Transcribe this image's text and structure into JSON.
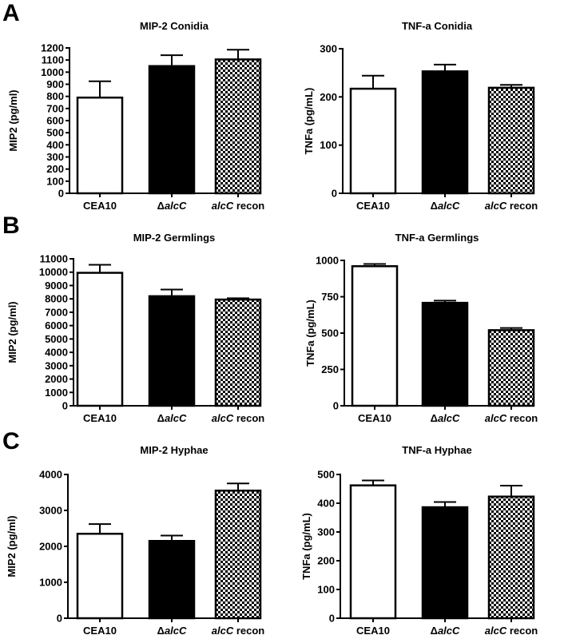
{
  "panel_labels": [
    "A",
    "B",
    "C"
  ],
  "colors": {
    "CEA10": "#ffffff",
    "ΔalcC": "#000000",
    "alcC recon": "checkerboard",
    "axis": "#000000"
  },
  "chart_data": [
    {
      "type": "bar",
      "panel": "A",
      "title": "MIP-2 Conidia",
      "xlabel": "",
      "ylabel": "MIP2 (pg/ml)",
      "categories": [
        "CEA10",
        "ΔalcC",
        "alcC recon"
      ],
      "values": [
        790,
        1050,
        1105
      ],
      "errors": [
        135,
        90,
        80
      ],
      "ylim": [
        0,
        1200
      ],
      "yticks": [
        0,
        100,
        200,
        300,
        400,
        500,
        600,
        700,
        800,
        900,
        1000,
        1100,
        1200
      ]
    },
    {
      "type": "bar",
      "panel": "A",
      "title": "TNF-a Conidia",
      "xlabel": "",
      "ylabel": "TNFa (pg/mL)",
      "categories": [
        "CEA10",
        "ΔalcC",
        "alcC recon"
      ],
      "values": [
        217,
        253,
        219
      ],
      "errors": [
        27,
        14,
        6
      ],
      "ylim": [
        0,
        300
      ],
      "yticks": [
        0,
        100,
        200,
        300
      ]
    },
    {
      "type": "bar",
      "panel": "B",
      "title": "MIP-2 Germlings",
      "xlabel": "",
      "ylabel": "MIP2 (pg/ml)",
      "categories": [
        "CEA10",
        "ΔalcC",
        "alcC recon"
      ],
      "values": [
        9950,
        8200,
        7950
      ],
      "errors": [
        600,
        500,
        100
      ],
      "ylim": [
        0,
        11000
      ],
      "yticks": [
        0,
        1000,
        2000,
        3000,
        4000,
        5000,
        6000,
        7000,
        8000,
        9000,
        10000,
        11000
      ]
    },
    {
      "type": "bar",
      "panel": "B",
      "title": "TNF-a Germlings",
      "xlabel": "",
      "ylabel": "TNFa (pg/mL)",
      "categories": [
        "CEA10",
        "ΔalcC",
        "alcC recon"
      ],
      "values": [
        960,
        708,
        520
      ],
      "errors": [
        15,
        15,
        15
      ],
      "ylim": [
        0,
        1000
      ],
      "yticks": [
        0,
        250,
        500,
        750,
        1000
      ]
    },
    {
      "type": "bar",
      "panel": "C",
      "title": "MIP-2 Hyphae",
      "xlabel": "",
      "ylabel": "MIP2 (pg/ml)",
      "categories": [
        "CEA10",
        "ΔalcC",
        "alcC recon"
      ],
      "values": [
        2350,
        2150,
        3550
      ],
      "errors": [
        270,
        150,
        200
      ],
      "ylim": [
        0,
        4000
      ],
      "yticks": [
        0,
        1000,
        2000,
        3000,
        4000
      ]
    },
    {
      "type": "bar",
      "panel": "C",
      "title": "TNF-a Hyphae",
      "xlabel": "",
      "ylabel": "TNFa (pg/mL)",
      "categories": [
        "CEA10",
        "ΔalcC",
        "alcC recon"
      ],
      "values": [
        462,
        386,
        423
      ],
      "errors": [
        17,
        18,
        38
      ],
      "ylim": [
        0,
        500
      ],
      "yticks": [
        0,
        100,
        200,
        300,
        400,
        500
      ]
    }
  ]
}
